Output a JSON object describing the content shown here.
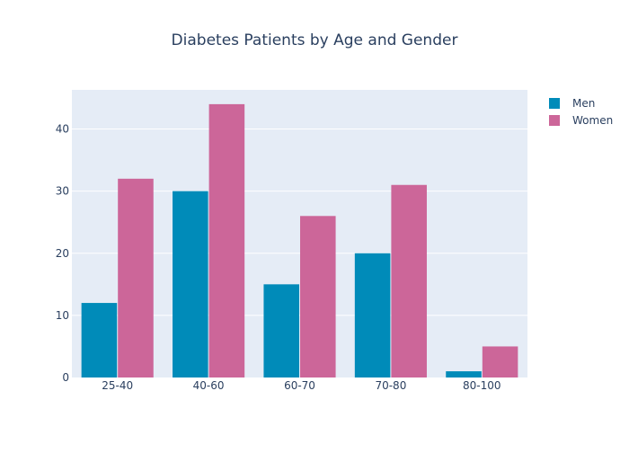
{
  "chart_data": {
    "type": "bar",
    "title": "Diabetes Patients by Age and Gender",
    "xlabel": "",
    "ylabel": "",
    "categories": [
      "25-40",
      "40-60",
      "60-70",
      "70-80",
      "80-100"
    ],
    "series": [
      {
        "name": "Men",
        "values": [
          12,
          30,
          15,
          20,
          1
        ],
        "color": "#008bb9"
      },
      {
        "name": "Women",
        "values": [
          32,
          44,
          26,
          31,
          5
        ],
        "color": "#cc6699"
      }
    ],
    "ylim": [
      0,
      46.3
    ],
    "yticks": [
      0,
      10,
      20,
      30,
      40
    ],
    "grid": true,
    "legend_position": "top-right",
    "plot_background": "#e5ecf6",
    "text_color": "#2a3f5f"
  }
}
